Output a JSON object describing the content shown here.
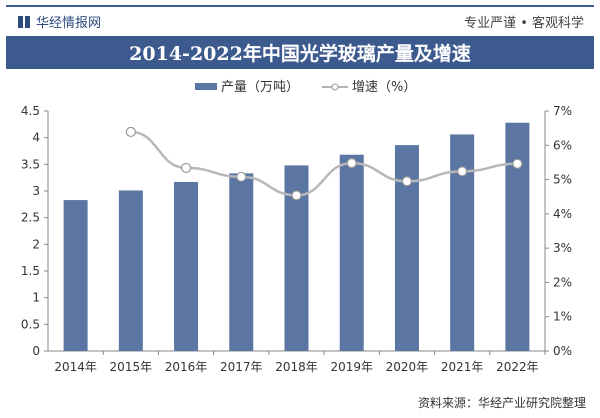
{
  "header": {
    "brand": "华经情报网",
    "slogan": "专业严谨 • 客观科学"
  },
  "title": "2014-2022年中国光学玻璃产量及增速",
  "source": "资料来源：华经产业研究院整理",
  "colors": {
    "bar": "#5b76a3",
    "line": "#b8b8b8",
    "title_bg": "#3d5a8e"
  },
  "chart_data": {
    "type": "bar+line",
    "title": "2014-2022年中国光学玻璃产量及增速",
    "categories": [
      "2014年",
      "2015年",
      "2016年",
      "2017年",
      "2018年",
      "2019年",
      "2020年",
      "2021年",
      "2022年"
    ],
    "series": [
      {
        "name": "产量（万吨）",
        "type": "bar",
        "axis": "left",
        "values": [
          2.83,
          3.01,
          3.17,
          3.33,
          3.48,
          3.68,
          3.86,
          4.06,
          4.28
        ]
      },
      {
        "name": "增速（%）",
        "type": "line",
        "axis": "right",
        "values": [
          null,
          6.39,
          5.34,
          5.08,
          4.54,
          5.48,
          4.95,
          5.24,
          5.46
        ]
      }
    ],
    "left_axis": {
      "range": [
        0,
        4.5
      ],
      "ticks": [
        "0",
        "0.5",
        "1",
        "1.5",
        "2",
        "2.5",
        "3",
        "3.5",
        "4",
        "4.5"
      ]
    },
    "right_axis": {
      "range": [
        0,
        7
      ],
      "ticks": [
        "0%",
        "1%",
        "2%",
        "3%",
        "4%",
        "5%",
        "6%",
        "7%"
      ]
    },
    "legend": {
      "position": "top",
      "items": [
        "产量（万吨）",
        "增速（%）"
      ]
    },
    "grid": false
  }
}
